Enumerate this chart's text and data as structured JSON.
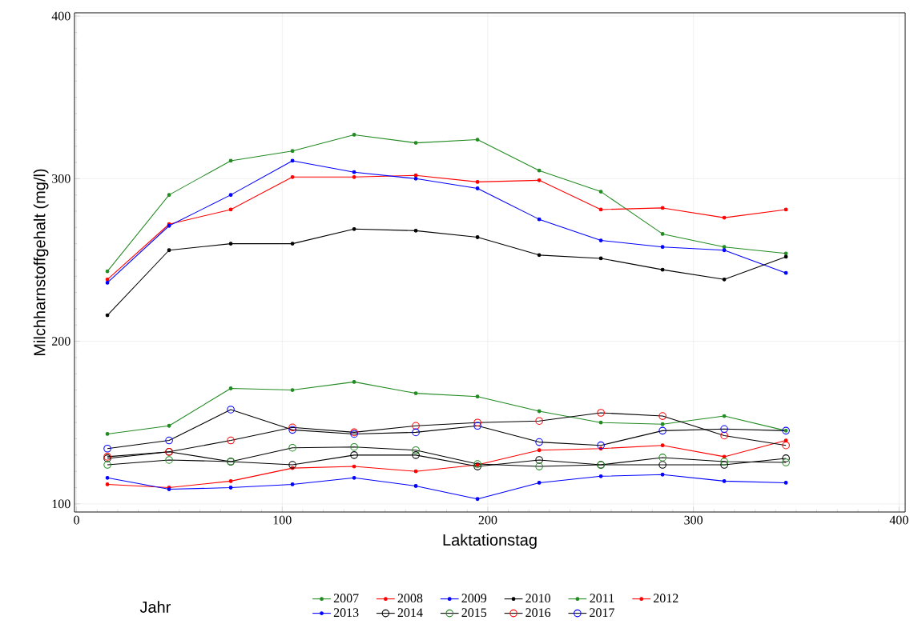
{
  "chart_data": {
    "type": "line",
    "xlabel": "Laktationstag",
    "ylabel": "Milchharnstoffgehalt (mg/l)",
    "legend_title": "Jahr",
    "x": [
      15,
      45,
      75,
      105,
      135,
      165,
      195,
      225,
      255,
      285,
      315,
      345
    ],
    "series": [
      {
        "name": "2007",
        "color": "#228b22",
        "marker": "point",
        "values": [
          243,
          290,
          311,
          317,
          327,
          322,
          324,
          305,
          292,
          266,
          258,
          254
        ]
      },
      {
        "name": "2008",
        "color": "#ff0000",
        "marker": "point",
        "values": [
          238,
          272,
          281,
          301,
          301,
          302,
          298,
          299,
          281,
          282,
          276,
          281
        ]
      },
      {
        "name": "2009",
        "color": "#0000ff",
        "marker": "point",
        "values": [
          236,
          271,
          290,
          311,
          304,
          300,
          294,
          275,
          262,
          258,
          256,
          242
        ]
      },
      {
        "name": "2010",
        "color": "#000000",
        "marker": "point",
        "values": [
          216,
          256,
          260,
          260,
          269,
          268,
          264,
          253,
          251,
          244,
          238,
          252
        ]
      },
      {
        "name": "2011",
        "color": "#228b22",
        "marker": "point",
        "values": [
          143,
          148,
          171,
          170,
          175,
          168,
          166,
          157,
          150,
          149,
          154,
          145
        ]
      },
      {
        "name": "2012",
        "color": "#ff0000",
        "marker": "point",
        "values": [
          112,
          110,
          114,
          122,
          123,
          120,
          124,
          133,
          134,
          136,
          129,
          139
        ]
      },
      {
        "name": "2013",
        "color": "#0000ff",
        "marker": "point",
        "values": [
          116,
          109,
          110,
          112,
          116,
          111,
          103,
          113,
          117,
          118,
          114,
          113
        ]
      },
      {
        "name": "2014",
        "color": "#000000",
        "colors": [
          "#000000",
          "#000000",
          "#000000",
          "#000000",
          "#000000",
          "#000000",
          "#000000",
          "#000000",
          "#000000",
          "#000000",
          "#000000",
          "#000000"
        ],
        "marker": "circle",
        "values": [
          128,
          132,
          126,
          124,
          130,
          130,
          123,
          127,
          124,
          124,
          124,
          128
        ]
      },
      {
        "name": "2015",
        "color": "#000000",
        "colors": [
          "#228b22",
          "#228b22",
          "#228b22",
          "#228b22",
          "#228b22",
          "#228b22",
          "#228b22",
          "#228b22",
          "#228b22",
          "#228b22",
          "#228b22",
          "#228b22"
        ],
        "marker": "circle",
        "values": [
          124,
          127,
          126,
          134.5,
          135,
          133,
          124.5,
          123,
          124,
          128.5,
          126,
          125.5
        ]
      },
      {
        "name": "2016",
        "color": "#000000",
        "colors": [
          "#ff0000",
          "#ff0000",
          "#ff0000",
          "#ff0000",
          "#ff0000",
          "#ff0000",
          "#ff0000",
          "#ff0000",
          "#ff0000",
          "#ff0000",
          "#ff0000",
          "#ff0000"
        ],
        "marker": "circle",
        "values": [
          129,
          132,
          139,
          147,
          144,
          148,
          150,
          151,
          156,
          154,
          142,
          136
        ]
      },
      {
        "name": "2017",
        "color": "#000000",
        "colors": [
          "#0000ff",
          "#0000ff",
          "#0000ff",
          "#0000ff",
          "#0000ff",
          "#0000ff",
          "#0000ff",
          "#0000ff",
          "#0000ff",
          "#0000ff",
          "#0000ff",
          "#0000ff"
        ],
        "marker": "circle",
        "values": [
          134,
          139,
          158,
          145.5,
          143,
          144,
          148,
          138,
          136,
          145,
          146,
          145
        ]
      }
    ],
    "xlim": [
      -1,
      403
    ],
    "ylim": [
      95,
      402
    ],
    "xticks": [
      0,
      100,
      200,
      300,
      400
    ],
    "yticks": [
      100,
      200,
      300,
      400
    ],
    "grid": true,
    "legend": "bottom",
    "line_style": "solid"
  }
}
